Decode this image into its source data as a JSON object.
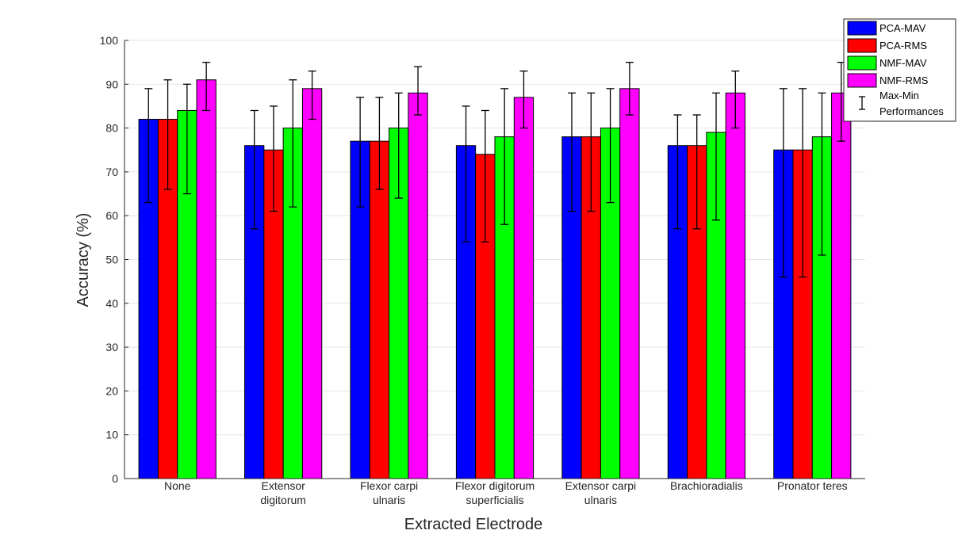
{
  "chart_data": {
    "type": "bar",
    "xlabel": "Extracted Electrode",
    "ylabel": "Accuracy (%)",
    "ylim": [
      0,
      100
    ],
    "yticks": [
      0,
      10,
      20,
      30,
      40,
      50,
      60,
      70,
      80,
      90,
      100
    ],
    "grid": "horizontal",
    "legend_position": "outside-top-right",
    "categories": [
      [
        "None"
      ],
      [
        "Extensor",
        "digitorum"
      ],
      [
        "Flexor carpi",
        "ulnaris"
      ],
      [
        "Flexor digitorum",
        "superficialis"
      ],
      [
        "Extensor carpi",
        "ulnaris"
      ],
      [
        "Brachioradialis"
      ],
      [
        "Pronator teres"
      ]
    ],
    "series": [
      {
        "name": "PCA-MAV",
        "color": "#0000ff",
        "values": [
          82,
          76,
          77,
          76,
          78,
          76,
          75
        ],
        "max": [
          89,
          84,
          87,
          85,
          88,
          83,
          89
        ],
        "min": [
          63,
          57,
          62,
          54,
          61,
          57,
          46
        ]
      },
      {
        "name": "PCA-RMS",
        "color": "#ff0000",
        "values": [
          82,
          75,
          77,
          74,
          78,
          76,
          75
        ],
        "max": [
          91,
          85,
          87,
          84,
          88,
          83,
          89
        ],
        "min": [
          66,
          61,
          66,
          54,
          61,
          57,
          46
        ]
      },
      {
        "name": "NMF-MAV",
        "color": "#00ff00",
        "values": [
          84,
          80,
          80,
          78,
          80,
          79,
          78
        ],
        "max": [
          90,
          91,
          88,
          89,
          89,
          88,
          88
        ],
        "min": [
          65,
          62,
          64,
          58,
          63,
          59,
          51
        ]
      },
      {
        "name": "NMF-RMS",
        "color": "#ff00ff",
        "values": [
          91,
          89,
          88,
          87,
          89,
          88,
          88
        ],
        "max": [
          95,
          93,
          94,
          93,
          95,
          93,
          95
        ],
        "min": [
          84,
          82,
          83,
          80,
          83,
          80,
          77
        ]
      }
    ],
    "errorbar_legend": [
      "Max-Min",
      "Performances"
    ]
  }
}
